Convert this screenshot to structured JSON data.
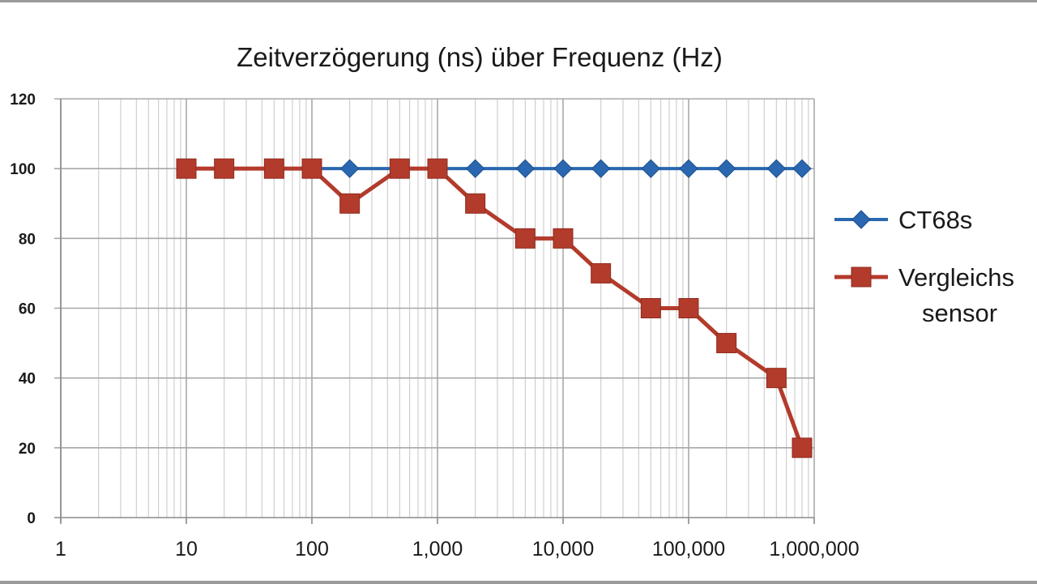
{
  "chart_data": {
    "type": "line",
    "title": "Zeitverzögerung (ns) über Frequenz (Hz)",
    "xlabel": "",
    "ylabel": "",
    "xscale": "log",
    "xlim": [
      1,
      1000000
    ],
    "ylim": [
      0,
      120
    ],
    "grid": true,
    "legend_position": "right",
    "x_ticks": [
      "1",
      "10",
      "100",
      "1,000",
      "10,000",
      "100,000",
      "1,000,000"
    ],
    "y_ticks": [
      "0",
      "20",
      "40",
      "60",
      "80",
      "100",
      "120"
    ],
    "series": [
      {
        "name": "CT68s",
        "color": "#2a67b0",
        "marker": "diamond",
        "x": [
          10,
          20,
          50,
          100,
          200,
          500,
          1000,
          2000,
          5000,
          10000,
          20000,
          50000,
          100000,
          200000,
          500000,
          800000
        ],
        "y": [
          100,
          100,
          100,
          100,
          100,
          100,
          100,
          100,
          100,
          100,
          100,
          100,
          100,
          100,
          100,
          100
        ]
      },
      {
        "name": "Vergleichs sensor",
        "color": "#b33b2b",
        "marker": "square",
        "x": [
          10,
          20,
          50,
          100,
          200,
          500,
          1000,
          2000,
          5000,
          10000,
          20000,
          50000,
          100000,
          200000,
          500000,
          800000
        ],
        "y": [
          100,
          100,
          100,
          100,
          90,
          100,
          100,
          90,
          80,
          80,
          70,
          60,
          60,
          50,
          40,
          20
        ]
      }
    ],
    "legend": [
      {
        "lines": [
          "CT68s"
        ]
      },
      {
        "lines": [
          "Vergleichs",
          "sensor"
        ]
      }
    ]
  }
}
